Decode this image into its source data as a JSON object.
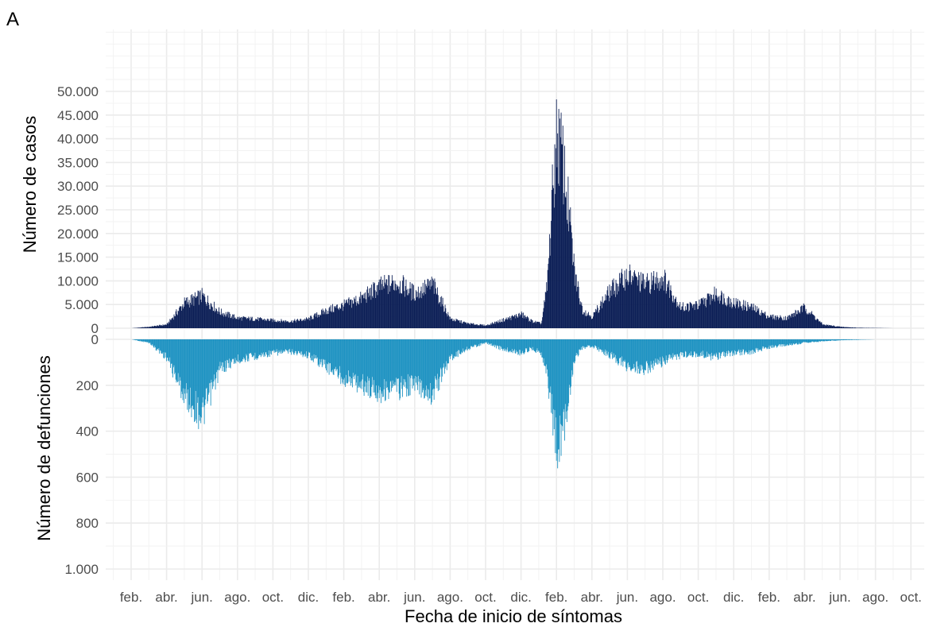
{
  "panel_label": "A",
  "chart_data": [
    {
      "type": "bar",
      "panel": "top",
      "ylabel": "Número de casos",
      "xlabel": "",
      "ylim": [
        0,
        50000
      ],
      "yticks": [
        0,
        5000,
        10000,
        15000,
        20000,
        25000,
        30000,
        35000,
        40000,
        45000,
        50000
      ],
      "ytick_labels": [
        "0",
        "5.000",
        "10.000",
        "15.000",
        "20.000",
        "25.000",
        "30.000",
        "35.000",
        "40.000",
        "45.000",
        "50.000"
      ],
      "bar_color": "#0c1f56",
      "grid": true,
      "series": [
        {
          "x": [
            "2020-02-01",
            "2020-03-01",
            "2020-04-01",
            "2020-05-01",
            "2020-06-01",
            "2020-07-01",
            "2020-08-01",
            "2020-09-01",
            "2020-10-01",
            "2020-11-01",
            "2020-12-01",
            "2021-01-01",
            "2021-02-01",
            "2021-03-01",
            "2021-04-01",
            "2021-05-01",
            "2021-06-01",
            "2021-07-01",
            "2021-08-01",
            "2021-09-01",
            "2021-10-01",
            "2021-11-01",
            "2021-12-01",
            "2021-12-20",
            "2022-01-05",
            "2022-01-15",
            "2022-01-25",
            "2022-02-01",
            "2022-02-10",
            "2022-02-20",
            "2022-03-01",
            "2022-03-15",
            "2022-04-01",
            "2022-05-01",
            "2022-06-01",
            "2022-07-01",
            "2022-08-01",
            "2022-09-01",
            "2022-10-01",
            "2022-11-01",
            "2022-12-01",
            "2023-01-01",
            "2023-02-01",
            "2023-03-01",
            "2023-04-01",
            "2023-05-01",
            "2023-06-01",
            "2023-07-01",
            "2023-08-01",
            "2023-09-01"
          ],
          "values": [
            0,
            300,
            800,
            5500,
            7000,
            3500,
            2200,
            2000,
            1700,
            1500,
            2000,
            3800,
            5000,
            6500,
            9000,
            10000,
            7500,
            9500,
            2000,
            1000,
            600,
            1800,
            3000,
            1500,
            1000,
            9000,
            30000,
            42000,
            37000,
            25000,
            12000,
            4000,
            2500,
            8000,
            11500,
            9500,
            11000,
            4500,
            5000,
            7500,
            5500,
            4500,
            2500,
            2200,
            4500,
            800,
            300,
            100,
            50,
            0
          ]
        }
      ]
    },
    {
      "type": "bar",
      "panel": "bottom",
      "ylabel": "Número de defunciones",
      "xlabel": "Fecha de inicio de síntomas",
      "ylim": [
        0,
        1000
      ],
      "y_inverted": true,
      "yticks": [
        0,
        200,
        400,
        600,
        800,
        1000
      ],
      "ytick_labels": [
        "0",
        "200",
        "400",
        "600",
        "800",
        "1.000"
      ],
      "bar_color": "#1f93c2",
      "grid": true,
      "xtick_labels": [
        "feb.",
        "abr.",
        "jun.",
        "ago.",
        "oct.",
        "dic.",
        "feb.",
        "abr.",
        "jun.",
        "ago.",
        "oct.",
        "dic.",
        "feb.",
        "abr.",
        "jun.",
        "ago.",
        "oct.",
        "dic.",
        "feb.",
        "abr.",
        "jun.",
        "ago.",
        "oct."
      ],
      "series": [
        {
          "x": [
            "2020-02-01",
            "2020-03-01",
            "2020-04-01",
            "2020-05-01",
            "2020-06-01",
            "2020-07-01",
            "2020-08-01",
            "2020-09-01",
            "2020-10-01",
            "2020-11-01",
            "2020-12-01",
            "2021-01-01",
            "2021-02-01",
            "2021-03-01",
            "2021-04-01",
            "2021-05-01",
            "2021-06-01",
            "2021-07-01",
            "2021-08-01",
            "2021-09-01",
            "2021-10-01",
            "2021-11-01",
            "2021-12-01",
            "2021-12-20",
            "2022-01-05",
            "2022-01-15",
            "2022-01-25",
            "2022-02-01",
            "2022-02-10",
            "2022-02-20",
            "2022-03-01",
            "2022-03-15",
            "2022-04-01",
            "2022-05-01",
            "2022-06-01",
            "2022-07-01",
            "2022-08-01",
            "2022-09-01",
            "2022-10-01",
            "2022-11-01",
            "2022-12-01",
            "2023-01-01",
            "2023-02-01",
            "2023-03-01",
            "2023-04-01",
            "2023-05-01",
            "2023-06-01",
            "2023-07-01",
            "2023-08-01",
            "2023-09-01"
          ],
          "values": [
            0,
            15,
            80,
            250,
            340,
            130,
            90,
            75,
            60,
            55,
            70,
            120,
            170,
            200,
            230,
            220,
            200,
            240,
            80,
            40,
            15,
            45,
            60,
            40,
            60,
            150,
            350,
            480,
            420,
            250,
            90,
            40,
            30,
            70,
            120,
            130,
            100,
            70,
            65,
            80,
            60,
            55,
            35,
            25,
            15,
            8,
            4,
            2,
            0,
            0
          ]
        }
      ]
    }
  ]
}
